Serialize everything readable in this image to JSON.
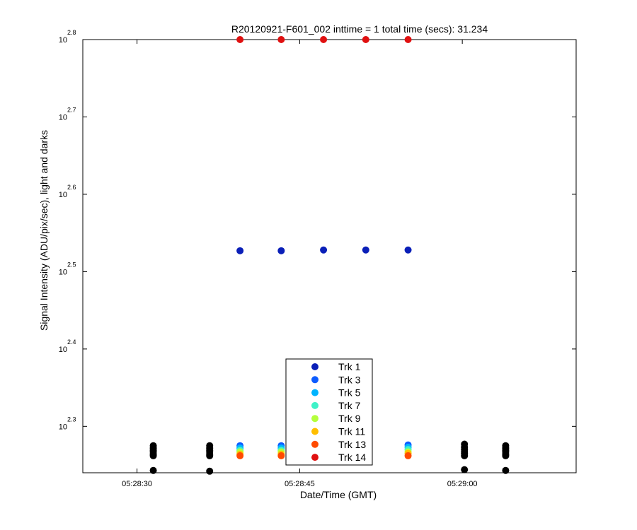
{
  "chart_data": {
    "type": "scatter",
    "title": "R20120921-F601_002 inttime = 1 total time (secs): 31.234",
    "xlabel": "Date/Time (GMT)",
    "ylabel": "Signal Intensity (ADU/pix/sec), light and darks",
    "y_scale": "log10",
    "x_range": [
      "05:28:25",
      "05:29:10.5"
    ],
    "ylim_exponent": [
      2.24,
      2.8
    ],
    "x_ticks": [
      {
        "t": "05:28:30",
        "label": "05:28:30"
      },
      {
        "t": "05:28:45",
        "label": "05:28:45"
      },
      {
        "t": "05:29:00",
        "label": "05:29:00"
      }
    ],
    "y_ticks": [
      {
        "exp": 2.3,
        "base": "10",
        "exponent": "2.3"
      },
      {
        "exp": 2.4,
        "base": "10",
        "exponent": "2.4"
      },
      {
        "exp": 2.5,
        "base": "10",
        "exponent": "2.5"
      },
      {
        "exp": 2.6,
        "base": "10",
        "exponent": "2.6"
      },
      {
        "exp": 2.7,
        "base": "10",
        "exponent": "2.7"
      },
      {
        "exp": 2.8,
        "base": "10",
        "exponent": "2.8"
      }
    ],
    "light_times": [
      "05:28:39.5",
      "05:28:43.3",
      "05:28:47.2",
      "05:28:51.1",
      "05:28:55"
    ],
    "series": [
      {
        "name": "Trk 1",
        "color": "#0a1fb8",
        "y_exp": [
          2.527,
          2.527,
          2.528,
          2.528,
          2.528
        ]
      },
      {
        "name": "Trk 3",
        "color": "#0d5cff",
        "y_exp": [
          2.275,
          2.275,
          2.276,
          2.276,
          2.276
        ]
      },
      {
        "name": "Trk 5",
        "color": "#00b4ff",
        "y_exp": [
          2.272,
          2.272,
          2.273,
          2.273,
          2.273
        ]
      },
      {
        "name": "Trk 7",
        "color": "#3ff2c8",
        "y_exp": [
          2.269,
          2.269,
          2.27,
          2.27,
          2.27
        ]
      },
      {
        "name": "Trk 9",
        "color": "#b4ff3c",
        "y_exp": [
          2.267,
          2.267,
          2.267,
          2.267,
          2.267
        ]
      },
      {
        "name": "Trk 11",
        "color": "#ffbe00",
        "y_exp": [
          2.264,
          2.264,
          2.265,
          2.265,
          2.265
        ]
      },
      {
        "name": "Trk 13",
        "color": "#ff4a00",
        "y_exp": [
          2.262,
          2.262,
          2.262,
          2.262,
          2.262
        ]
      },
      {
        "name": "Trk 14",
        "color": "#e01010",
        "y_exp": [
          2.8,
          2.8,
          2.8,
          2.8,
          2.8
        ]
      }
    ],
    "darks": {
      "color": "#000000",
      "times": [
        "05:28:31.5",
        "05:28:36.7",
        "05:29:00.2",
        "05:29:04"
      ],
      "y_exp": [
        [
          2.275,
          2.272,
          2.269,
          2.267,
          2.264,
          2.262,
          2.243
        ],
        [
          2.275,
          2.272,
          2.269,
          2.267,
          2.264,
          2.262,
          2.242
        ],
        [
          2.277,
          2.273,
          2.27,
          2.267,
          2.265,
          2.262,
          2.244
        ],
        [
          2.275,
          2.272,
          2.269,
          2.267,
          2.264,
          2.262,
          2.243
        ]
      ]
    },
    "legend_position": "bottom-center",
    "grid": false
  }
}
